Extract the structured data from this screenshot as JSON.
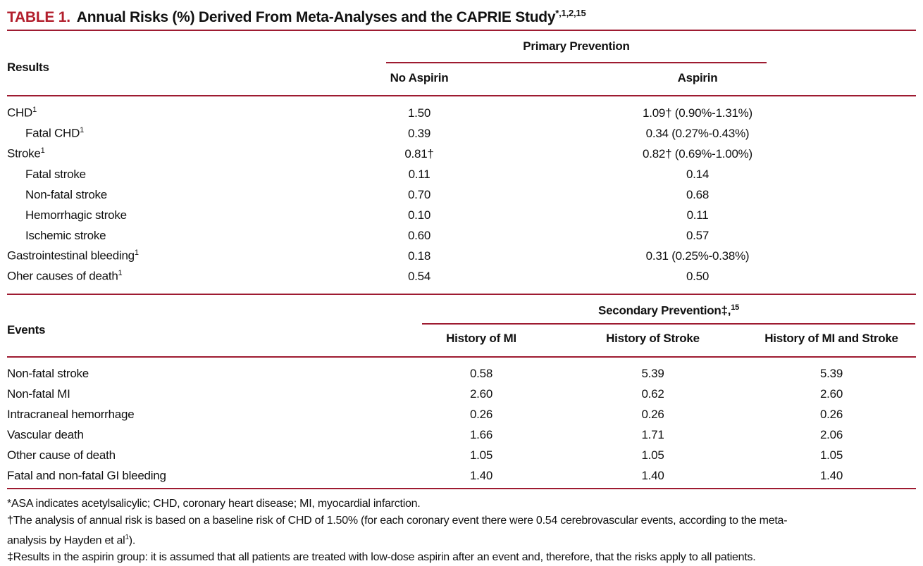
{
  "colors": {
    "table_number_red": "#b21e2c",
    "rule_red": "#9e1b31",
    "text": "#111111",
    "background": "#ffffff"
  },
  "title": {
    "label": "TABLE 1.",
    "text": "Annual Risks (%) Derived From Meta-Analyses and the CAPRIE Study",
    "superscript": "*,1,2,15"
  },
  "primary": {
    "row_header": "Results",
    "group_header": "Primary Prevention",
    "columns": [
      "No Aspirin",
      "Aspirin"
    ],
    "rows": [
      {
        "label": "CHD",
        "sup": "1",
        "indent": false,
        "no_aspirin": "1.50",
        "aspirin": "1.09† (0.90%-1.31%)"
      },
      {
        "label": "Fatal CHD",
        "sup": "1",
        "indent": true,
        "no_aspirin": "0.39",
        "aspirin": "0.34 (0.27%-0.43%)"
      },
      {
        "label": "Stroke",
        "sup": "1",
        "indent": false,
        "no_aspirin": "0.81†",
        "aspirin": "0.82† (0.69%-1.00%)"
      },
      {
        "label": "Fatal stroke",
        "sup": "",
        "indent": true,
        "no_aspirin": "0.11",
        "aspirin": "0.14"
      },
      {
        "label": "Non-fatal stroke",
        "sup": "",
        "indent": true,
        "no_aspirin": "0.70",
        "aspirin": "0.68"
      },
      {
        "label": "Hemorrhagic stroke",
        "sup": "",
        "indent": true,
        "no_aspirin": "0.10",
        "aspirin": "0.11"
      },
      {
        "label": "Ischemic stroke",
        "sup": "",
        "indent": true,
        "no_aspirin": "0.60",
        "aspirin": "0.57"
      },
      {
        "label": "Gastrointestinal bleeding",
        "sup": "1",
        "indent": false,
        "no_aspirin": "0.18",
        "aspirin": "0.31 (0.25%-0.38%)"
      },
      {
        "label": "Oher causes of death",
        "sup": "1",
        "indent": false,
        "no_aspirin": "0.54",
        "aspirin": "0.50"
      }
    ]
  },
  "secondary": {
    "row_header": "Events",
    "group_header": "Secondary Prevention",
    "group_header_marker": "‡,",
    "group_header_sup": "15",
    "columns": [
      "History of MI",
      "History of Stroke",
      "History of MI and Stroke"
    ],
    "rows": [
      {
        "label": "Non-fatal stroke",
        "mi": "0.58",
        "stroke": "5.39",
        "mi_and_stroke": "5.39"
      },
      {
        "label": "Non-fatal MI",
        "mi": "2.60",
        "stroke": "0.62",
        "mi_and_stroke": "2.60"
      },
      {
        "label": "Intracraneal hemorrhage",
        "mi": "0.26",
        "stroke": "0.26",
        "mi_and_stroke": "0.26"
      },
      {
        "label": "Vascular death",
        "mi": "1.66",
        "stroke": "1.71",
        "mi_and_stroke": "2.06"
      },
      {
        "label": "Other cause of death",
        "mi": "1.05",
        "stroke": "1.05",
        "mi_and_stroke": "1.05"
      },
      {
        "label": "Fatal and non-fatal GI bleeding",
        "mi": "1.40",
        "stroke": "1.40",
        "mi_and_stroke": "1.40"
      }
    ]
  },
  "footnotes": [
    {
      "segments": [
        {
          "t": "*ASA indicates acetylsalicylic; CHD, coronary heart disease; MI, myocardial infarction."
        }
      ]
    },
    {
      "segments": [
        {
          "t": "†The analysis of annual risk is based on a baseline risk of CHD of 1.50% (for each coronary event there were 0.54 cerebrovascular events, according to the meta-"
        },
        {
          "t": "",
          "br": true
        },
        {
          "t": "analysis by Hayden et al"
        },
        {
          "t": "1",
          "sup": true
        },
        {
          "t": ")."
        }
      ]
    },
    {
      "segments": [
        {
          "t": "‡Results in the aspirin group: it is assumed that all patients are treated with low-dose aspirin after an event and, therefore, that the risks apply to all patients."
        }
      ]
    }
  ]
}
